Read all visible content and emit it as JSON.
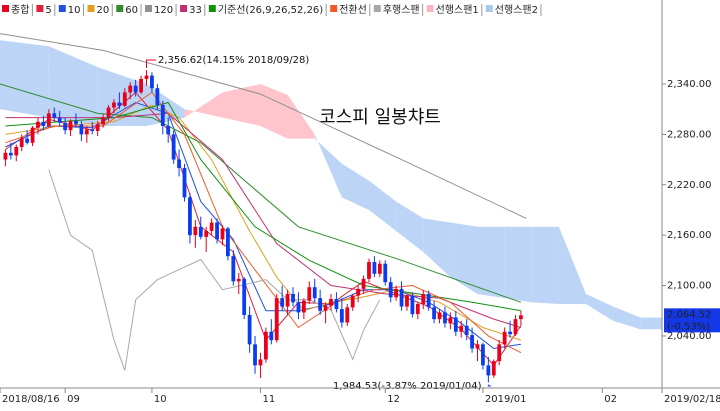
{
  "chart_data": {
    "type": "candlestick",
    "title": "코스피 일봉챠트",
    "xlim": [
      -1,
      121
    ],
    "xticks": [
      {
        "value": -1,
        "label": "2018/08/16"
      },
      {
        "value": 11,
        "label": "09"
      },
      {
        "value": 27,
        "label": "10"
      },
      {
        "value": 47,
        "label": "11"
      },
      {
        "value": 70,
        "label": "12"
      },
      {
        "value": 88,
        "label": "2019/01"
      },
      {
        "value": 110,
        "label": "02"
      },
      {
        "value": 121,
        "label": "2019/02/18"
      }
    ],
    "ylim": [
      1978,
      2440
    ],
    "yticks": [
      {
        "value": 2040,
        "label": "2,040.00"
      },
      {
        "value": 2100,
        "label": "2,100.00"
      },
      {
        "value": 2160,
        "label": "2,160.00"
      },
      {
        "value": 2220,
        "label": "2,220.00"
      },
      {
        "value": 2280,
        "label": "2,280.00"
      },
      {
        "value": 2340,
        "label": "2,340.00"
      }
    ],
    "annotations": [
      "2,356.62(14.15% 2018/09/28)",
      "1,984.53(-3.87% 2019/01/04)"
    ],
    "last_price": {
      "value": 2064.52,
      "label": "2,064.52",
      "change": "(-0.53%)",
      "color": "#1438e8"
    },
    "series": [
      {
        "name": "종합",
        "color": "#e8001c",
        "down_color": "#0a3cf0",
        "ohlc": [
          [
            2250,
            2262,
            2242,
            2258
          ],
          [
            2258,
            2270,
            2250,
            2255
          ],
          [
            2255,
            2268,
            2248,
            2265
          ],
          [
            2265,
            2280,
            2260,
            2275
          ],
          [
            2275,
            2285,
            2268,
            2270
          ],
          [
            2270,
            2290,
            2266,
            2288
          ],
          [
            2288,
            2300,
            2280,
            2295
          ],
          [
            2295,
            2302,
            2285,
            2290
          ],
          [
            2290,
            2310,
            2288,
            2305
          ],
          [
            2305,
            2312,
            2295,
            2300
          ],
          [
            2300,
            2308,
            2290,
            2294
          ],
          [
            2294,
            2300,
            2280,
            2285
          ],
          [
            2285,
            2298,
            2278,
            2296
          ],
          [
            2296,
            2305,
            2288,
            2292
          ],
          [
            2292,
            2296,
            2272,
            2280
          ],
          [
            2280,
            2290,
            2270,
            2286
          ],
          [
            2286,
            2295,
            2280,
            2284
          ],
          [
            2284,
            2296,
            2278,
            2292
          ],
          [
            2292,
            2304,
            2288,
            2300
          ],
          [
            2300,
            2315,
            2296,
            2312
          ],
          [
            2312,
            2322,
            2305,
            2318
          ],
          [
            2318,
            2330,
            2310,
            2314
          ],
          [
            2314,
            2335,
            2312,
            2330
          ],
          [
            2330,
            2342,
            2322,
            2338
          ],
          [
            2338,
            2345,
            2325,
            2330
          ],
          [
            2330,
            2350,
            2328,
            2346
          ],
          [
            2346,
            2356.62,
            2338,
            2350
          ],
          [
            2350,
            2354,
            2330,
            2335
          ],
          [
            2335,
            2340,
            2310,
            2315
          ],
          [
            2315,
            2320,
            2280,
            2290
          ],
          [
            2290,
            2300,
            2270,
            2280
          ],
          [
            2280,
            2285,
            2245,
            2250
          ],
          [
            2250,
            2262,
            2230,
            2240
          ],
          [
            2240,
            2245,
            2200,
            2205
          ],
          [
            2205,
            2210,
            2150,
            2160
          ],
          [
            2160,
            2178,
            2145,
            2170
          ],
          [
            2170,
            2182,
            2155,
            2158
          ],
          [
            2158,
            2170,
            2140,
            2165
          ],
          [
            2165,
            2180,
            2160,
            2175
          ],
          [
            2175,
            2180,
            2150,
            2155
          ],
          [
            2155,
            2172,
            2148,
            2168
          ],
          [
            2168,
            2170,
            2130,
            2135
          ],
          [
            2135,
            2142,
            2100,
            2105
          ],
          [
            2105,
            2115,
            2090,
            2108
          ],
          [
            2108,
            2110,
            2060,
            2065
          ],
          [
            2065,
            2075,
            2020,
            2030
          ],
          [
            2030,
            2040,
            1995,
            2005
          ],
          [
            2005,
            2020,
            1990,
            2012
          ],
          [
            2012,
            2050,
            2008,
            2045
          ],
          [
            2045,
            2060,
            2030,
            2035
          ],
          [
            2035,
            2090,
            2032,
            2085
          ],
          [
            2085,
            2100,
            2070,
            2075
          ],
          [
            2075,
            2095,
            2065,
            2090
          ],
          [
            2090,
            2098,
            2075,
            2080
          ],
          [
            2080,
            2092,
            2060,
            2068
          ],
          [
            2068,
            2085,
            2060,
            2082
          ],
          [
            2082,
            2105,
            2078,
            2098
          ],
          [
            2098,
            2108,
            2080,
            2085
          ],
          [
            2085,
            2095,
            2065,
            2070
          ],
          [
            2070,
            2080,
            2055,
            2076
          ],
          [
            2076,
            2090,
            2070,
            2084
          ],
          [
            2084,
            2092,
            2068,
            2072
          ],
          [
            2072,
            2085,
            2050,
            2056
          ],
          [
            2056,
            2078,
            2052,
            2074
          ],
          [
            2074,
            2090,
            2070,
            2088
          ],
          [
            2088,
            2100,
            2080,
            2096
          ],
          [
            2096,
            2112,
            2090,
            2108
          ],
          [
            2108,
            2132,
            2104,
            2128
          ],
          [
            2128,
            2135,
            2110,
            2114
          ],
          [
            2114,
            2130,
            2110,
            2126
          ],
          [
            2126,
            2130,
            2100,
            2104
          ],
          [
            2104,
            2110,
            2080,
            2086
          ],
          [
            2086,
            2100,
            2082,
            2096
          ],
          [
            2096,
            2105,
            2070,
            2075
          ],
          [
            2075,
            2090,
            2070,
            2088
          ],
          [
            2088,
            2092,
            2062,
            2066
          ],
          [
            2066,
            2080,
            2060,
            2078
          ],
          [
            2078,
            2095,
            2072,
            2090
          ],
          [
            2090,
            2094,
            2070,
            2074
          ],
          [
            2074,
            2082,
            2055,
            2060
          ],
          [
            2060,
            2072,
            2055,
            2068
          ],
          [
            2068,
            2075,
            2050,
            2055
          ],
          [
            2055,
            2068,
            2048,
            2062
          ],
          [
            2062,
            2070,
            2040,
            2045
          ],
          [
            2045,
            2058,
            2038,
            2052
          ],
          [
            2052,
            2060,
            2035,
            2041
          ],
          [
            2041,
            2050,
            2020,
            2025
          ],
          [
            2025,
            2035,
            2010,
            2030
          ],
          [
            2030,
            2032,
            2000,
            2005
          ],
          [
            2005,
            2015,
            1984.53,
            1993
          ],
          [
            1993,
            2012,
            1990,
            2010
          ],
          [
            2010,
            2035,
            2005,
            2030
          ],
          [
            2030,
            2050,
            2025,
            2045
          ],
          [
            2045,
            2058,
            2038,
            2042
          ],
          [
            2042,
            2065,
            2040,
            2060
          ],
          [
            2060,
            2070,
            2052,
            2064.52
          ]
        ]
      },
      {
        "name": "5",
        "color": "#e0203c",
        "x": [
          0,
          8,
          16,
          24,
          30,
          36,
          42,
          48,
          54,
          60,
          66,
          72,
          78,
          84,
          90,
          95
        ],
        "values": [
          2262,
          2298,
          2285,
          2330,
          2285,
          2170,
          2140,
          2035,
          2080,
          2078,
          2105,
          2090,
          2075,
          2048,
          2005,
          2052
        ]
      },
      {
        "name": "10",
        "color": "#2050e0",
        "x": [
          0,
          8,
          16,
          24,
          30,
          36,
          42,
          48,
          54,
          60,
          66,
          72,
          78,
          84,
          90,
          95
        ],
        "values": [
          2265,
          2290,
          2288,
          2318,
          2305,
          2200,
          2155,
          2070,
          2070,
          2078,
          2095,
          2095,
          2080,
          2055,
          2025,
          2030
        ]
      },
      {
        "name": "20",
        "color": "#e0a020",
        "x": [
          0,
          10,
          20,
          27,
          32,
          38,
          45,
          50,
          55,
          60,
          65,
          72,
          80,
          88,
          95
        ],
        "values": [
          2280,
          2290,
          2295,
          2315,
          2300,
          2250,
          2165,
          2110,
          2070,
          2080,
          2085,
          2095,
          2080,
          2050,
          2035
        ]
      },
      {
        "name": "60",
        "color": "#2e8b2e",
        "x": [
          -1,
          17,
          27,
          36,
          54,
          73,
          95
        ],
        "values": [
          2340,
          2305,
          2300,
          2270,
          2170,
          2130,
          2080
        ]
      },
      {
        "name": "120",
        "color": "#909090",
        "x": [
          -1,
          18,
          47,
          73,
          96
        ],
        "values": [
          2400,
          2380,
          2328,
          2250,
          2180
        ]
      },
      {
        "name": "33",
        "color": "#c03070",
        "x": [
          0,
          10,
          20,
          30,
          40,
          50,
          60,
          70,
          80,
          90,
          95
        ],
        "values": [
          2300,
          2300,
          2300,
          2305,
          2250,
          2150,
          2100,
          2090,
          2085,
          2060,
          2050
        ]
      },
      {
        "name": "기준선(26,9,26,52,26)",
        "color": "#109010",
        "x": [
          0,
          10,
          20,
          30,
          36,
          46,
          56,
          66,
          76,
          86,
          95
        ],
        "values": [
          2290,
          2295,
          2300,
          2318,
          2250,
          2170,
          2130,
          2100,
          2090,
          2080,
          2070
        ]
      },
      {
        "name": "전환선",
        "color": "#f05a28",
        "x": [
          0,
          9,
          18,
          27,
          33,
          40,
          47,
          54,
          61,
          68,
          75,
          82,
          89,
          95
        ],
        "values": [
          2270,
          2290,
          2290,
          2330,
          2280,
          2170,
          2110,
          2050,
          2080,
          2095,
          2100,
          2080,
          2040,
          2020
        ]
      },
      {
        "name": "후행스팬",
        "color": "#a8a8a8",
        "x": [
          8,
          12,
          16,
          20,
          22,
          24,
          28,
          32,
          36,
          40,
          44,
          48,
          52,
          56,
          60,
          64,
          66,
          69
        ],
        "values": [
          2238,
          2160,
          2142,
          2035,
          1999,
          2083,
          2107,
          2119,
          2131,
          2095,
          2101,
          2107,
          2083,
          2083,
          2071,
          2012,
          2047,
          2083
        ]
      },
      {
        "name": "선행스팬1",
        "color": "#ffb4c0",
        "x": [
          -1,
          8,
          17,
          26,
          33,
          40,
          47,
          52,
          57,
          62,
          67,
          72,
          77,
          82,
          87,
          92,
          97,
          102,
          107,
          112,
          117,
          121
        ],
        "values": [
          2310,
          2300,
          2290,
          2290,
          2300,
          2330,
          2340,
          2327,
          2280,
          2205,
          2190,
          2165,
          2140,
          2110,
          2090,
          2085,
          2080,
          2078,
          2078,
          2058,
          2048,
          2048
        ]
      },
      {
        "name": "선행스팬2",
        "color": "#a8c8f0",
        "x": [
          -1,
          8,
          17,
          26,
          33,
          40,
          47,
          52,
          57,
          62,
          67,
          72,
          77,
          82,
          87,
          92,
          97,
          102,
          107,
          112,
          117,
          121
        ],
        "values": [
          2392,
          2385,
          2360,
          2340,
          2310,
          2300,
          2290,
          2275,
          2275,
          2245,
          2225,
          2200,
          2180,
          2175,
          2170,
          2170,
          2170,
          2170,
          2090,
          2075,
          2062,
          2062
        ]
      }
    ]
  }
}
